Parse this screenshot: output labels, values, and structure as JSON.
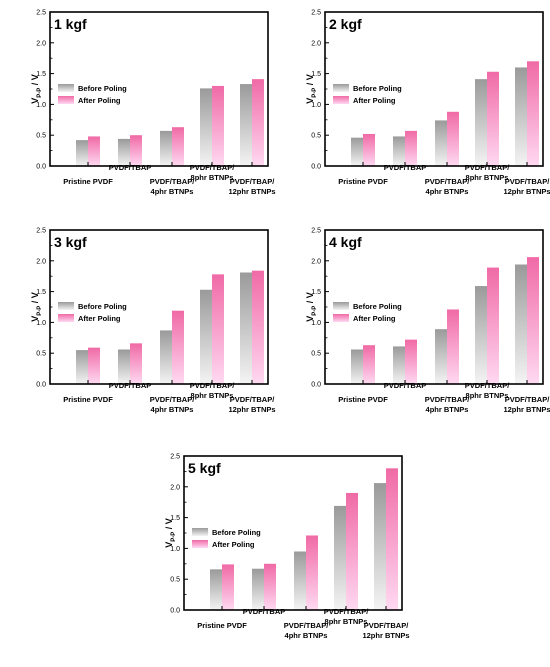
{
  "chart_data": [
    {
      "type": "bar",
      "title": "1 kgf",
      "ylabel_main": "V",
      "ylabel_sub": "P-P",
      "ylabel_unit": " / V",
      "ylim": [
        0,
        2.5
      ],
      "yticks": [
        "0.0",
        "0.5",
        "1.0",
        "1.5",
        "2.0",
        "2.5"
      ],
      "categories": [
        [
          "Pristine PVDF"
        ],
        [
          "PVDF/TBAP"
        ],
        [
          "PVDF/TBAP/",
          "4phr BTNPs"
        ],
        [
          "PVDF/TBAP/",
          "8phr BTNPs"
        ],
        [
          "PVDF/TBAP/",
          "12phr BTNPs"
        ]
      ],
      "series": [
        {
          "name": "Before Poling",
          "values": [
            0.42,
            0.44,
            0.57,
            1.26,
            1.33
          ]
        },
        {
          "name": "After Poling",
          "values": [
            0.48,
            0.5,
            0.63,
            1.3,
            1.41
          ]
        }
      ],
      "legend": "center-left"
    },
    {
      "type": "bar",
      "title": "2 kgf",
      "ylabel_main": "V",
      "ylabel_sub": "P-P",
      "ylabel_unit": " / V",
      "ylim": [
        0,
        2.5
      ],
      "yticks": [
        "0.0",
        "0.5",
        "1.0",
        "1.5",
        "2.0",
        "2.5"
      ],
      "categories": [
        [
          "Pristine PVDF"
        ],
        [
          "PVDF/TBAP"
        ],
        [
          "PVDF/TBAP/",
          "4phr BTNPs"
        ],
        [
          "PVDF/TBAP/",
          "8phr BTNPs"
        ],
        [
          "PVDF/TBAP/",
          "12phr BTNPs"
        ]
      ],
      "series": [
        {
          "name": "Before Poling",
          "values": [
            0.46,
            0.48,
            0.74,
            1.41,
            1.6
          ]
        },
        {
          "name": "After Poling",
          "values": [
            0.52,
            0.57,
            0.88,
            1.53,
            1.7
          ]
        }
      ],
      "legend": "center-left"
    },
    {
      "type": "bar",
      "title": "3 kgf",
      "ylabel_main": "V",
      "ylabel_sub": "P-P",
      "ylabel_unit": " / V",
      "ylim": [
        0,
        2.5
      ],
      "yticks": [
        "0.0",
        "0.5",
        "1.0",
        "1.5",
        "2.0",
        "2.5"
      ],
      "categories": [
        [
          "Pristine PVDF"
        ],
        [
          "PVDF/TBAP"
        ],
        [
          "PVDF/TBAP/",
          "4phr BTNPs"
        ],
        [
          "PVDF/TBAP/",
          "8phr BTNPs"
        ],
        [
          "PVDF/TBAP/",
          "12phr BTNPs"
        ]
      ],
      "series": [
        {
          "name": "Before Poling",
          "values": [
            0.55,
            0.56,
            0.87,
            1.53,
            1.81
          ]
        },
        {
          "name": "After Poling",
          "values": [
            0.59,
            0.66,
            1.19,
            1.78,
            1.84
          ]
        }
      ],
      "legend": "center-left"
    },
    {
      "type": "bar",
      "title": "4 kgf",
      "ylabel_main": "V",
      "ylabel_sub": "P-P",
      "ylabel_unit": " / V",
      "ylim": [
        0,
        2.5
      ],
      "yticks": [
        "0.0",
        "0.5",
        "1.0",
        "1.5",
        "2.0",
        "2.5"
      ],
      "categories": [
        [
          "Pristine PVDF"
        ],
        [
          "PVDF/TBAP"
        ],
        [
          "PVDF/TBAP/",
          "4phr BTNPs"
        ],
        [
          "PVDF/TBAP/",
          "8phr BTNPs"
        ],
        [
          "PVDF/TBAP/",
          "12phr BTNPs"
        ]
      ],
      "series": [
        {
          "name": "Before Poling",
          "values": [
            0.56,
            0.61,
            0.89,
            1.59,
            1.94
          ]
        },
        {
          "name": "After Poling",
          "values": [
            0.63,
            0.72,
            1.21,
            1.89,
            2.06
          ]
        }
      ],
      "legend": "center-left"
    },
    {
      "type": "bar",
      "title": "5 kgf",
      "ylabel_main": "V",
      "ylabel_sub": "P-P",
      "ylabel_unit": " / V",
      "ylim": [
        0,
        2.5
      ],
      "yticks": [
        "0.0",
        "0.5",
        "1.0",
        "1.5",
        "2.0",
        "2.5"
      ],
      "categories": [
        [
          "Pristine PVDF"
        ],
        [
          "PVDF/TBAP"
        ],
        [
          "PVDF/TBAP/",
          "4phr BTNPs"
        ],
        [
          "PVDF/TBAP/",
          "8phr BTNPs"
        ],
        [
          "PVDF/TBAP/",
          "12phr BTNPs"
        ]
      ],
      "series": [
        {
          "name": "Before Poling",
          "values": [
            0.66,
            0.67,
            0.95,
            1.69,
            2.06
          ]
        },
        {
          "name": "After Poling",
          "values": [
            0.74,
            0.75,
            1.21,
            1.9,
            2.3
          ]
        }
      ],
      "legend": "center-left"
    }
  ],
  "colors": {
    "before_top": "#9a9a9a",
    "before_bottom": "#f4f4f4",
    "after_top": "#f06aa6",
    "after_bottom": "#ffd9f2"
  }
}
